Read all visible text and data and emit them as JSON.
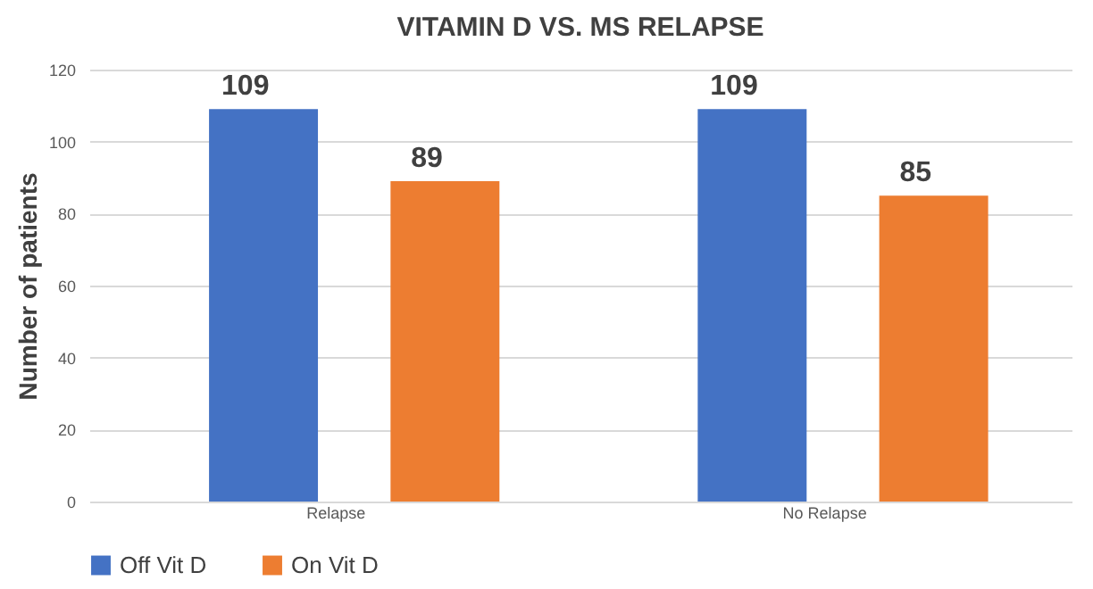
{
  "chart_data": {
    "type": "bar",
    "title": "VITAMIN D VS. MS RELAPSE",
    "ylabel": "Number of patients",
    "categories": [
      "Relapse",
      "No Relapse"
    ],
    "series": [
      {
        "name": "Off Vit D",
        "color": "#4472c4",
        "values": [
          109,
          109
        ]
      },
      {
        "name": "On Vit D",
        "color": "#ed7d31",
        "values": [
          89,
          85
        ]
      }
    ],
    "ylim": [
      0,
      120
    ],
    "yticks": [
      0,
      20,
      40,
      60,
      80,
      100,
      120
    ],
    "grid": "y",
    "legend": "bottom",
    "data_labels": true
  }
}
